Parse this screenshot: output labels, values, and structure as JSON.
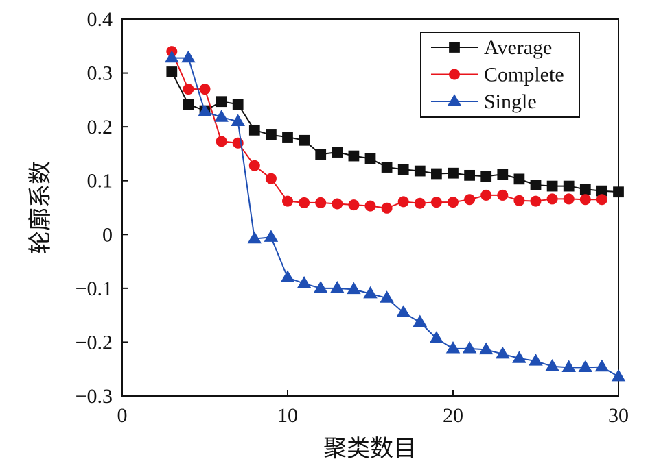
{
  "chart_data": {
    "type": "line",
    "title": "",
    "xlabel": "聚类数目",
    "ylabel": "轮廓系数",
    "xlim": [
      0,
      30
    ],
    "ylim": [
      -0.3,
      0.4
    ],
    "xticks": [
      0,
      10,
      20,
      30
    ],
    "xtick_labels": [
      "0",
      "10",
      "20",
      "30"
    ],
    "yticks": [
      -0.3,
      -0.2,
      -0.1,
      0,
      0.1,
      0.2,
      0.3,
      0.4
    ],
    "ytick_labels": [
      "−0.3",
      "−0.2",
      "−0.1",
      "0",
      "0.1",
      "0.2",
      "0.3",
      "0.4"
    ],
    "grid": false,
    "legend_position": "top-right",
    "series": [
      {
        "name": "Average",
        "color": "#111111",
        "marker": "square",
        "x": [
          3,
          4,
          5,
          6,
          7,
          8,
          9,
          10,
          11,
          12,
          13,
          14,
          15,
          16,
          17,
          18,
          19,
          20,
          21,
          22,
          23,
          24,
          25,
          26,
          27,
          28,
          29,
          30
        ],
        "y": [
          0.302,
          0.242,
          0.23,
          0.247,
          0.242,
          0.194,
          0.185,
          0.181,
          0.175,
          0.149,
          0.153,
          0.146,
          0.141,
          0.125,
          0.121,
          0.118,
          0.113,
          0.114,
          0.11,
          0.108,
          0.112,
          0.103,
          0.092,
          0.09,
          0.09,
          0.084,
          0.081,
          0.079
        ]
      },
      {
        "name": "Complete",
        "color": "#e8141b",
        "marker": "circle",
        "x": [
          3,
          4,
          5,
          6,
          7,
          8,
          9,
          10,
          11,
          12,
          13,
          14,
          15,
          16,
          17,
          18,
          19,
          20,
          21,
          22,
          23,
          24,
          25,
          26,
          27,
          28,
          29
        ],
        "y": [
          0.34,
          0.27,
          0.27,
          0.173,
          0.17,
          0.128,
          0.104,
          0.062,
          0.059,
          0.059,
          0.057,
          0.055,
          0.053,
          0.049,
          0.061,
          0.058,
          0.06,
          0.06,
          0.065,
          0.073,
          0.073,
          0.063,
          0.062,
          0.066,
          0.066,
          0.065,
          0.065
        ]
      },
      {
        "name": "Single",
        "color": "#1f4fb4",
        "marker": "triangle",
        "x": [
          3,
          4,
          5,
          6,
          7,
          8,
          9,
          10,
          11,
          12,
          13,
          14,
          15,
          16,
          17,
          18,
          19,
          20,
          21,
          22,
          23,
          24,
          25,
          26,
          27,
          28,
          29,
          30
        ],
        "y": [
          0.328,
          0.328,
          0.228,
          0.218,
          0.21,
          -0.008,
          -0.005,
          -0.08,
          -0.091,
          -0.1,
          -0.1,
          -0.102,
          -0.11,
          -0.118,
          -0.145,
          -0.163,
          -0.193,
          -0.212,
          -0.212,
          -0.214,
          -0.222,
          -0.23,
          -0.235,
          -0.245,
          -0.247,
          -0.247,
          -0.246,
          -0.264
        ]
      }
    ]
  }
}
